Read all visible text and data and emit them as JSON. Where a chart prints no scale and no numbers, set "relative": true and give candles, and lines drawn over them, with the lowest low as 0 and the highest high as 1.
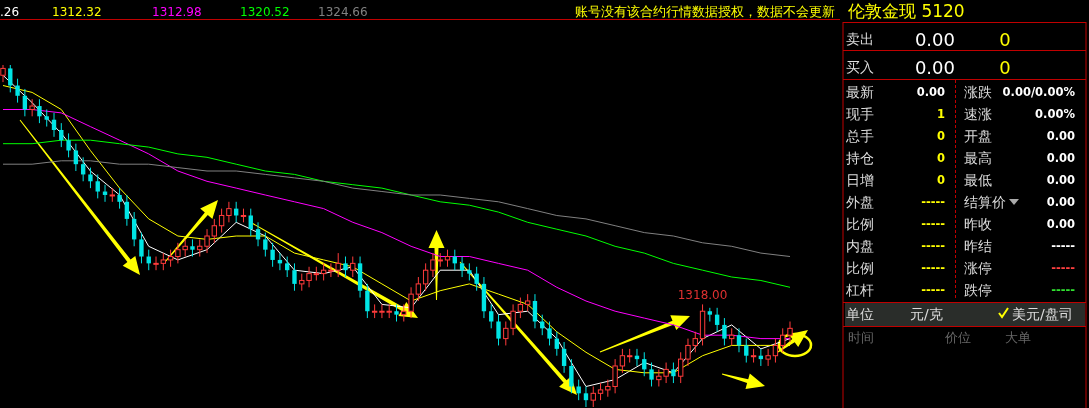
{
  "chart_data": [
    {
      "type": "candlestick",
      "relative": true,
      "categories": [
        null,
        null,
        null,
        null,
        null,
        null,
        null,
        null,
        null,
        null,
        null,
        null,
        null,
        null,
        null,
        null,
        null,
        null,
        null,
        null,
        null,
        null,
        null,
        null,
        null,
        null,
        null,
        null,
        null,
        null,
        null,
        null,
        null,
        null,
        null,
        null,
        null,
        null,
        null,
        null,
        null,
        null,
        null,
        null,
        null,
        null,
        null,
        null,
        null,
        null,
        null,
        null,
        null,
        null,
        null,
        null,
        null,
        null,
        null,
        null,
        null,
        null,
        null,
        null,
        null,
        null,
        null,
        null,
        null,
        null,
        null,
        null,
        null,
        null,
        null,
        null,
        null,
        null,
        null,
        null,
        null,
        null,
        null,
        null,
        null,
        null,
        null,
        null,
        null,
        null,
        null,
        null,
        null,
        null,
        null,
        null,
        null,
        null,
        null,
        null,
        null,
        null,
        null,
        null,
        null,
        null,
        null,
        null,
        null
      ],
      "ohlc": [
        [
          0.97,
          1.0,
          0.95,
          0.99
        ],
        [
          0.99,
          1.0,
          0.92,
          0.94
        ],
        [
          0.94,
          0.96,
          0.89,
          0.91
        ],
        [
          0.91,
          0.93,
          0.85,
          0.87
        ],
        [
          0.87,
          0.9,
          0.85,
          0.88
        ],
        [
          0.88,
          0.9,
          0.83,
          0.85
        ],
        [
          0.85,
          0.87,
          0.82,
          0.84
        ],
        [
          0.84,
          0.86,
          0.79,
          0.81
        ],
        [
          0.81,
          0.83,
          0.76,
          0.78
        ],
        [
          0.78,
          0.8,
          0.73,
          0.75
        ],
        [
          0.75,
          0.77,
          0.69,
          0.71
        ],
        [
          0.71,
          0.73,
          0.66,
          0.68
        ],
        [
          0.68,
          0.7,
          0.64,
          0.66
        ],
        [
          0.66,
          0.68,
          0.61,
          0.63
        ],
        [
          0.63,
          0.65,
          0.6,
          0.62
        ],
        [
          0.62,
          0.64,
          0.6,
          0.62
        ],
        [
          0.62,
          0.64,
          0.58,
          0.6
        ],
        [
          0.6,
          0.62,
          0.53,
          0.55
        ],
        [
          0.55,
          0.57,
          0.47,
          0.49
        ],
        [
          0.49,
          0.51,
          0.42,
          0.44
        ],
        [
          0.44,
          0.46,
          0.4,
          0.42
        ],
        [
          0.42,
          0.44,
          0.4,
          0.42
        ],
        [
          0.42,
          0.45,
          0.4,
          0.43
        ],
        [
          0.43,
          0.46,
          0.41,
          0.44
        ],
        [
          0.44,
          0.48,
          0.42,
          0.46
        ],
        [
          0.46,
          0.49,
          0.44,
          0.47
        ],
        [
          0.47,
          0.49,
          0.44,
          0.46
        ],
        [
          0.46,
          0.49,
          0.44,
          0.47
        ],
        [
          0.47,
          0.52,
          0.45,
          0.5
        ],
        [
          0.5,
          0.55,
          0.48,
          0.53
        ],
        [
          0.53,
          0.58,
          0.51,
          0.56
        ],
        [
          0.56,
          0.6,
          0.54,
          0.58
        ],
        [
          0.58,
          0.6,
          0.54,
          0.56
        ],
        [
          0.56,
          0.58,
          0.54,
          0.56
        ],
        [
          0.56,
          0.58,
          0.5,
          0.52
        ],
        [
          0.52,
          0.54,
          0.47,
          0.49
        ],
        [
          0.49,
          0.51,
          0.44,
          0.46
        ],
        [
          0.46,
          0.48,
          0.41,
          0.43
        ],
        [
          0.43,
          0.45,
          0.4,
          0.42
        ],
        [
          0.42,
          0.44,
          0.38,
          0.4
        ],
        [
          0.4,
          0.42,
          0.34,
          0.36
        ],
        [
          0.36,
          0.39,
          0.34,
          0.37
        ],
        [
          0.37,
          0.41,
          0.35,
          0.39
        ],
        [
          0.39,
          0.41,
          0.37,
          0.39
        ],
        [
          0.39,
          0.42,
          0.37,
          0.4
        ],
        [
          0.4,
          0.42,
          0.38,
          0.4
        ],
        [
          0.4,
          0.45,
          0.38,
          0.42
        ],
        [
          0.42,
          0.44,
          0.38,
          0.4
        ],
        [
          0.4,
          0.44,
          0.38,
          0.42
        ],
        [
          0.42,
          0.44,
          0.32,
          0.34
        ],
        [
          0.34,
          0.36,
          0.26,
          0.28
        ],
        [
          0.28,
          0.3,
          0.26,
          0.28
        ],
        [
          0.28,
          0.3,
          0.26,
          0.28
        ],
        [
          0.28,
          0.3,
          0.26,
          0.28
        ],
        [
          0.28,
          0.3,
          0.25,
          0.27
        ],
        [
          0.27,
          0.3,
          0.25,
          0.28
        ],
        [
          0.28,
          0.35,
          0.26,
          0.33
        ],
        [
          0.33,
          0.38,
          0.31,
          0.36
        ],
        [
          0.36,
          0.42,
          0.34,
          0.4
        ],
        [
          0.4,
          0.45,
          0.38,
          0.43
        ],
        [
          0.43,
          0.45,
          0.41,
          0.43
        ],
        [
          0.43,
          0.46,
          0.41,
          0.44
        ],
        [
          0.44,
          0.46,
          0.4,
          0.42
        ],
        [
          0.42,
          0.44,
          0.38,
          0.4
        ],
        [
          0.4,
          0.42,
          0.37,
          0.39
        ],
        [
          0.39,
          0.41,
          0.34,
          0.36
        ],
        [
          0.36,
          0.38,
          0.26,
          0.28
        ],
        [
          0.28,
          0.3,
          0.23,
          0.25
        ],
        [
          0.25,
          0.27,
          0.18,
          0.2
        ],
        [
          0.2,
          0.25,
          0.18,
          0.23
        ],
        [
          0.23,
          0.3,
          0.21,
          0.28
        ],
        [
          0.28,
          0.32,
          0.26,
          0.3
        ],
        [
          0.3,
          0.33,
          0.28,
          0.31
        ],
        [
          0.31,
          0.33,
          0.23,
          0.25
        ],
        [
          0.25,
          0.27,
          0.21,
          0.23
        ],
        [
          0.23,
          0.25,
          0.18,
          0.2
        ],
        [
          0.2,
          0.22,
          0.15,
          0.17
        ],
        [
          0.17,
          0.19,
          0.1,
          0.12
        ],
        [
          0.12,
          0.14,
          0.04,
          0.06
        ],
        [
          0.06,
          0.08,
          0.02,
          0.04
        ],
        [
          0.04,
          0.06,
          0.0,
          0.02
        ],
        [
          0.02,
          0.06,
          0.0,
          0.04
        ],
        [
          0.04,
          0.07,
          0.02,
          0.05
        ],
        [
          0.05,
          0.08,
          0.03,
          0.06
        ],
        [
          0.06,
          0.14,
          0.04,
          0.12
        ],
        [
          0.12,
          0.17,
          0.1,
          0.15
        ],
        [
          0.15,
          0.17,
          0.13,
          0.15
        ],
        [
          0.15,
          0.17,
          0.12,
          0.14
        ],
        [
          0.14,
          0.16,
          0.09,
          0.11
        ],
        [
          0.11,
          0.13,
          0.06,
          0.08
        ],
        [
          0.08,
          0.11,
          0.06,
          0.09
        ],
        [
          0.09,
          0.13,
          0.07,
          0.11
        ],
        [
          0.11,
          0.13,
          0.07,
          0.09
        ],
        [
          0.09,
          0.16,
          0.07,
          0.14
        ],
        [
          0.14,
          0.2,
          0.12,
          0.18
        ],
        [
          0.18,
          0.22,
          0.16,
          0.2
        ],
        [
          0.2,
          0.3,
          0.18,
          0.28
        ],
        [
          0.28,
          0.29,
          0.25,
          0.27
        ],
        [
          0.27,
          0.29,
          0.22,
          0.24
        ],
        [
          0.24,
          0.26,
          0.18,
          0.2
        ],
        [
          0.2,
          0.23,
          0.18,
          0.21
        ],
        [
          0.21,
          0.23,
          0.16,
          0.18
        ],
        [
          0.18,
          0.2,
          0.13,
          0.15
        ],
        [
          0.15,
          0.17,
          0.13,
          0.15
        ],
        [
          0.15,
          0.17,
          0.12,
          0.14
        ],
        [
          0.14,
          0.17,
          0.12,
          0.15
        ],
        [
          0.15,
          0.2,
          0.13,
          0.18
        ],
        [
          0.18,
          0.23,
          0.16,
          0.21
        ],
        [
          0.21,
          0.25,
          0.19,
          0.23
        ]
      ],
      "series": [
        {
          "name": ".26",
          "type": "line",
          "color": "#ffffff",
          "values": [
            0.97,
            null,
            null,
            null,
            0.89,
            null,
            null,
            null,
            0.8,
            null,
            null,
            null,
            0.69,
            null,
            null,
            null,
            0.62,
            null,
            null,
            null,
            0.47,
            null,
            null,
            null,
            0.43,
            null,
            null,
            null,
            0.46,
            null,
            null,
            null,
            0.54,
            null,
            null,
            null,
            0.5,
            null,
            null,
            null,
            0.4,
            null,
            null,
            null,
            0.39,
            null,
            null,
            null,
            0.41,
            null,
            null,
            null,
            0.3,
            null,
            null,
            null,
            0.29,
            null,
            null,
            null,
            0.4,
            null,
            null,
            null,
            0.4,
            null,
            null,
            null,
            0.27,
            null,
            null,
            null,
            0.28,
            null,
            null,
            null,
            0.2,
            null,
            null,
            null,
            0.06,
            null,
            null,
            null,
            0.08,
            null,
            null,
            null,
            0.13,
            null,
            null,
            null,
            0.1,
            null,
            null,
            null,
            0.2,
            null,
            null,
            null,
            0.24,
            null,
            null,
            null,
            0.17,
            null,
            null,
            null,
            0.2
          ]
        },
        {
          "name": "1312.32",
          "type": "line",
          "color": "#ffff00",
          "values": [
            0.94,
            null,
            null,
            null,
            0.92,
            null,
            null,
            null,
            0.87,
            null,
            null,
            null,
            0.75,
            null,
            null,
            null,
            0.64,
            null,
            null,
            null,
            0.55,
            null,
            null,
            null,
            0.5,
            null,
            null,
            null,
            0.49,
            null,
            null,
            null,
            0.5,
            null,
            null,
            null,
            0.5,
            null,
            null,
            null,
            0.45,
            null,
            null,
            null,
            0.43,
            null,
            null,
            null,
            0.41,
            null,
            null,
            null,
            0.36,
            null,
            null,
            null,
            0.31,
            null,
            null,
            null,
            0.34,
            null,
            null,
            null,
            0.36,
            null,
            null,
            null,
            0.33,
            null,
            null,
            null,
            0.3,
            null,
            null,
            null,
            0.22,
            null,
            null,
            null,
            0.16,
            null,
            null,
            null,
            0.11,
            null,
            null,
            null,
            0.1,
            null,
            null,
            null,
            0.1,
            null,
            null,
            null,
            0.15,
            null,
            null,
            null,
            0.18,
            null,
            null,
            null,
            0.18,
            null,
            null,
            null,
            0.18
          ]
        },
        {
          "name": "1312.98",
          "type": "line",
          "color": "#ff00ff",
          "values": [
            0.87,
            null,
            null,
            null,
            0.87,
            null,
            null,
            null,
            0.86,
            null,
            null,
            null,
            0.82,
            null,
            null,
            null,
            0.78,
            null,
            null,
            null,
            0.74,
            null,
            null,
            null,
            0.69,
            null,
            null,
            null,
            0.66,
            null,
            null,
            null,
            0.64,
            null,
            null,
            null,
            0.62,
            null,
            null,
            null,
            0.6,
            null,
            null,
            null,
            0.58,
            null,
            null,
            null,
            0.54,
            null,
            null,
            null,
            0.51,
            null,
            null,
            null,
            0.47,
            null,
            null,
            null,
            0.44,
            null,
            null,
            null,
            0.44,
            null,
            null,
            null,
            0.42,
            null,
            null,
            null,
            0.4,
            null,
            null,
            null,
            0.35,
            null,
            null,
            null,
            0.31,
            null,
            null,
            null,
            0.28,
            null,
            null,
            null,
            0.26,
            null,
            null,
            null,
            0.24,
            null,
            null,
            null,
            0.21,
            null,
            null,
            null,
            0.21,
            null,
            null,
            null,
            0.2,
            null,
            null,
            null,
            0.2
          ]
        },
        {
          "name": "1320.52",
          "type": "line",
          "color": "#00ff00",
          "values": [
            0.77,
            null,
            null,
            null,
            0.77,
            null,
            null,
            null,
            0.78,
            null,
            null,
            null,
            0.78,
            null,
            null,
            null,
            0.77,
            null,
            null,
            null,
            0.76,
            null,
            null,
            null,
            0.74,
            null,
            null,
            null,
            0.73,
            null,
            null,
            null,
            0.71,
            null,
            null,
            null,
            0.69,
            null,
            null,
            null,
            0.68,
            null,
            null,
            null,
            0.66,
            null,
            null,
            null,
            0.65,
            null,
            null,
            null,
            0.64,
            null,
            null,
            null,
            0.62,
            null,
            null,
            null,
            0.6,
            null,
            null,
            null,
            0.59,
            null,
            null,
            null,
            0.57,
            null,
            null,
            null,
            0.54,
            null,
            null,
            null,
            0.52,
            null,
            null,
            null,
            0.5,
            null,
            null,
            null,
            0.47,
            null,
            null,
            null,
            0.45,
            null,
            null,
            null,
            0.42,
            null,
            null,
            null,
            0.4,
            null,
            null,
            null,
            0.38,
            null,
            null,
            null,
            0.37,
            null,
            null,
            null,
            0.35
          ]
        },
        {
          "name": "1324.66",
          "type": "line",
          "color": "#808080",
          "values": [
            0.71,
            null,
            null,
            null,
            0.71,
            null,
            null,
            null,
            0.72,
            null,
            null,
            null,
            0.72,
            null,
            null,
            null,
            0.71,
            null,
            null,
            null,
            0.71,
            null,
            null,
            null,
            0.7,
            null,
            null,
            null,
            0.69,
            null,
            null,
            null,
            0.69,
            null,
            null,
            null,
            0.68,
            null,
            null,
            null,
            0.67,
            null,
            null,
            null,
            0.66,
            null,
            null,
            null,
            0.64,
            null,
            null,
            null,
            0.63,
            null,
            null,
            null,
            0.62,
            null,
            null,
            null,
            0.62,
            null,
            null,
            null,
            0.61,
            null,
            null,
            null,
            0.6,
            null,
            null,
            null,
            0.58,
            null,
            null,
            null,
            0.56,
            null,
            null,
            null,
            0.55,
            null,
            null,
            null,
            0.53,
            null,
            null,
            null,
            0.51,
            null,
            null,
            null,
            0.5,
            null,
            null,
            null,
            0.48,
            null,
            null,
            null,
            0.47,
            null,
            null,
            null,
            0.45,
            null,
            null,
            null,
            0.44
          ]
        }
      ],
      "annotations": [
        "账号没有该合约行情数据授权，数据不会更新",
        {
          "text": "1318.00",
          "y": 0.3
        }
      ]
    },
    {
      "type": "other",
      "annotations": [
        "伦敦金现 5120",
        "卖出",
        "0.00",
        "0",
        "买入",
        "0.00",
        "0",
        "最新",
        "0.00",
        "现手",
        "1",
        "总手",
        "0",
        "持仓",
        "0",
        "日增",
        "0",
        "外盘",
        "-----",
        "比例",
        "-----",
        "内盘",
        "-----",
        "比例",
        "-----",
        "杠杆",
        "-----",
        "涨跌",
        "0.00/0.00%",
        "速涨",
        "0.00%",
        "开盘",
        "0.00",
        "最高",
        "0.00",
        "最低",
        "0.00",
        "结算价",
        "0.00",
        "昨收",
        "0.00",
        "昨结",
        "-----",
        "涨停",
        "-----",
        "跌停",
        "-----",
        "单位",
        "元/克",
        "美元/盘司",
        "时间",
        "价位",
        "大单"
      ]
    }
  ]
}
